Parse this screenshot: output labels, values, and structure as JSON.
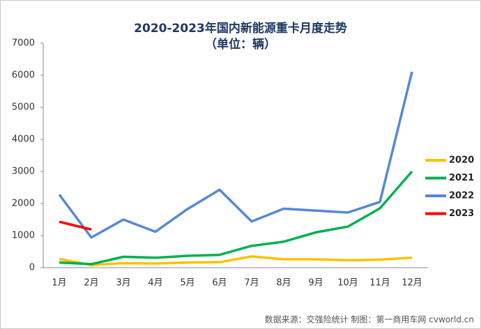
{
  "chart_data": {
    "type": "line",
    "title": "2020-2023年国内新能源重卡月度走势",
    "subtitle": "（单位：辆）",
    "footer": "数据来源：交强险统计  制图：第一商用车网 cvworld.cn",
    "categories": [
      "1月",
      "2月",
      "3月",
      "4月",
      "5月",
      "6月",
      "7月",
      "8月",
      "9月",
      "10月",
      "11月",
      "12月"
    ],
    "series": [
      {
        "name": "2020",
        "color": "#ffc000",
        "values": [
          270,
          80,
          140,
          130,
          160,
          170,
          350,
          260,
          260,
          230,
          250,
          310
        ]
      },
      {
        "name": "2021",
        "color": "#00b050",
        "values": [
          160,
          110,
          340,
          310,
          370,
          400,
          680,
          810,
          1100,
          1280,
          1850,
          3000
        ]
      },
      {
        "name": "2022",
        "color": "#5588d6",
        "values": [
          2280,
          940,
          1500,
          1120,
          1830,
          2430,
          1440,
          1840,
          1780,
          1720,
          2050,
          6110
        ]
      },
      {
        "name": "2023",
        "color": "#ff0000",
        "values": [
          1430,
          1190,
          null,
          null,
          null,
          null,
          null,
          null,
          null,
          null,
          null,
          null
        ]
      }
    ],
    "ylim": [
      0,
      7000
    ],
    "yticks": [
      0,
      1000,
      2000,
      3000,
      4000,
      5000,
      6000,
      7000
    ],
    "grid": false,
    "legend": "right"
  }
}
